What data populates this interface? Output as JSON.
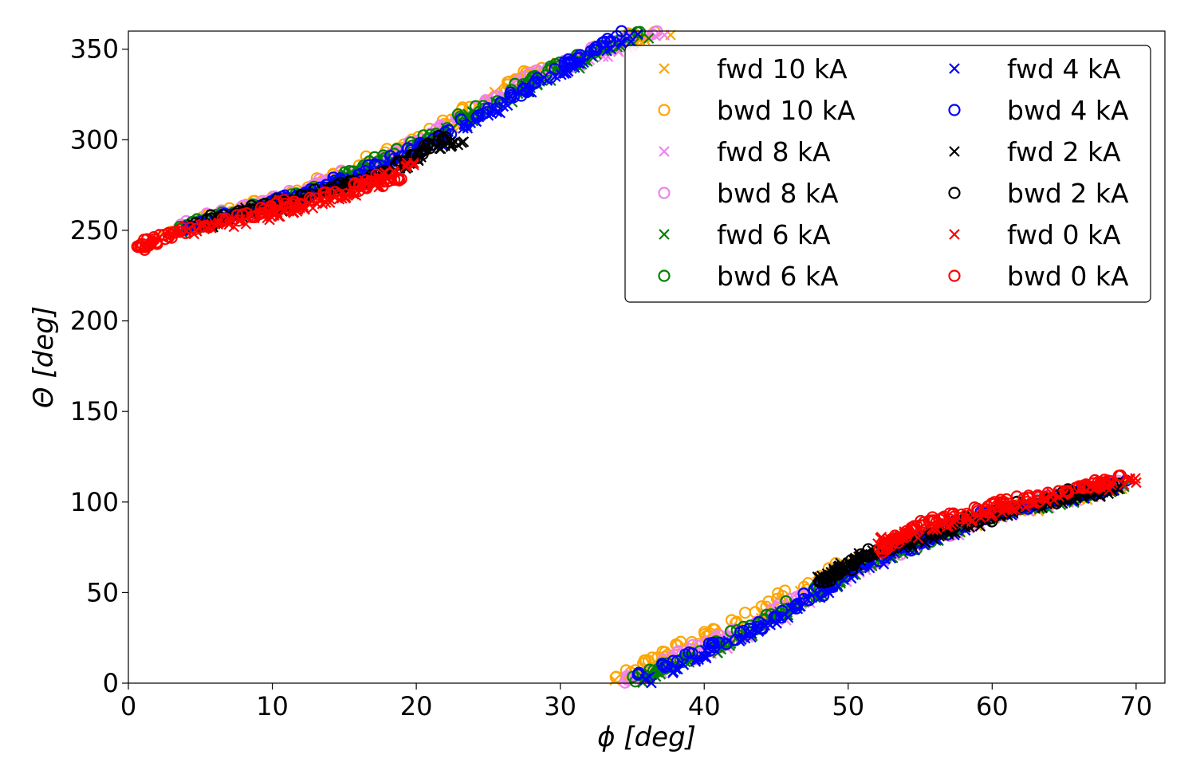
{
  "chart_data": {
    "type": "scatter",
    "title": "",
    "xlabel": "ϕ [deg]",
    "ylabel": "Θ [deg]",
    "xlim": [
      0,
      72
    ],
    "ylim": [
      0,
      360
    ],
    "xticks": [
      0,
      10,
      20,
      30,
      40,
      50,
      60,
      70
    ],
    "yticks": [
      0,
      50,
      100,
      150,
      200,
      250,
      300,
      350
    ],
    "grid": false,
    "legend_position": "top-right",
    "legend_columns": 2,
    "series": [
      {
        "name": "fwd 10 kA",
        "color": "#ffa500",
        "marker": "x",
        "segments": [
          [
            [
              2.5,
              248
            ],
            [
              12,
              268
            ],
            [
              20,
              296
            ],
            [
              28,
              334
            ],
            [
              38,
              362
            ]
          ],
          [
            [
              34,
              0
            ],
            [
              42,
              26
            ],
            [
              50,
              62
            ],
            [
              60,
              92
            ],
            [
              69,
              108
            ]
          ]
        ]
      },
      {
        "name": "bwd 10 kA",
        "color": "#ffa500",
        "marker": "o",
        "segments": [
          [
            [
              2.5,
              250
            ],
            [
              12,
              272
            ],
            [
              20,
              300
            ],
            [
              28,
              338
            ],
            [
              37,
              362
            ]
          ],
          [
            [
              33,
              1
            ],
            [
              41,
              30
            ],
            [
              50,
              66
            ],
            [
              60,
              94
            ],
            [
              69,
              110
            ]
          ]
        ]
      },
      {
        "name": "fwd 8 kA",
        "color": "#ee82ee",
        "marker": "x",
        "segments": [
          [
            [
              3,
              249
            ],
            [
              12,
              268
            ],
            [
              20,
              295
            ],
            [
              28,
              332
            ],
            [
              38,
              362
            ]
          ],
          [
            [
              35,
              0
            ],
            [
              43,
              26
            ],
            [
              51,
              64
            ],
            [
              60,
              92
            ],
            [
              69,
              108
            ]
          ]
        ]
      },
      {
        "name": "bwd 8 kA",
        "color": "#ee82ee",
        "marker": "o",
        "segments": [
          [
            [
              3,
              251
            ],
            [
              12,
              271
            ],
            [
              20,
              298
            ],
            [
              28,
              336
            ],
            [
              37,
              362
            ]
          ],
          [
            [
              34,
              1
            ],
            [
              42,
              28
            ],
            [
              51,
              66
            ],
            [
              60,
              94
            ],
            [
              69,
              110
            ]
          ]
        ]
      },
      {
        "name": "fwd 6 kA",
        "color": "#008000",
        "marker": "x",
        "segments": [
          [
            [
              3.5,
              250
            ],
            [
              12,
              268
            ],
            [
              20,
              294
            ],
            [
              28,
              330
            ],
            [
              37,
              362
            ]
          ],
          [
            [
              35,
              1
            ],
            [
              43,
              26
            ],
            [
              51,
              64
            ],
            [
              60,
              92
            ],
            [
              69,
              108
            ]
          ]
        ]
      },
      {
        "name": "bwd 6 kA",
        "color": "#008000",
        "marker": "o",
        "segments": [
          [
            [
              3.5,
              252
            ],
            [
              12,
              270
            ],
            [
              20,
              297
            ],
            [
              28,
              334
            ],
            [
              36,
              362
            ]
          ],
          [
            [
              35,
              2
            ],
            [
              43,
              30
            ],
            [
              51,
              66
            ],
            [
              60,
              94
            ],
            [
              69,
              110
            ]
          ]
        ]
      },
      {
        "name": "fwd 4 kA",
        "color": "#0000ff",
        "marker": "x",
        "segments": [
          [
            [
              4,
              250
            ],
            [
              12,
              268
            ],
            [
              20,
              292
            ],
            [
              28,
              328
            ],
            [
              36,
              362
            ]
          ],
          [
            [
              36,
              1
            ],
            [
              44,
              30
            ],
            [
              52,
              68
            ],
            [
              60,
              92
            ],
            [
              69,
              108
            ]
          ]
        ]
      },
      {
        "name": "bwd 4 kA",
        "color": "#0000ff",
        "marker": "o",
        "segments": [
          [
            [
              4,
              252
            ],
            [
              12,
              270
            ],
            [
              20,
              295
            ],
            [
              28,
              331
            ],
            [
              35,
              362
            ]
          ],
          [
            [
              35,
              3
            ],
            [
              44,
              32
            ],
            [
              52,
              70
            ],
            [
              60,
              94
            ],
            [
              69,
              110
            ]
          ]
        ]
      },
      {
        "name": "fwd 2 kA",
        "color": "#000000",
        "marker": "x",
        "segments": [
          [
            [
              4.5,
              252
            ],
            [
              12,
              266
            ],
            [
              18,
              280
            ],
            [
              23,
              300
            ]
          ],
          [
            [
              48,
              58
            ],
            [
              51,
              70
            ],
            [
              56,
              82
            ],
            [
              63,
              98
            ],
            [
              69,
              108
            ]
          ]
        ]
      },
      {
        "name": "bwd 2 kA",
        "color": "#000000",
        "marker": "o",
        "segments": [
          [
            [
              4.5,
              254
            ],
            [
              12,
              268
            ],
            [
              18,
              282
            ],
            [
              22,
              302
            ]
          ],
          [
            [
              48,
              56
            ],
            [
              51,
              70
            ],
            [
              56,
              84
            ],
            [
              63,
              100
            ],
            [
              69,
              110
            ]
          ]
        ]
      },
      {
        "name": "fwd 0 kA",
        "color": "#ff0000",
        "marker": "x",
        "segments": [
          [
            [
              3,
              249
            ],
            [
              10,
              258
            ],
            [
              15,
              268
            ],
            [
              20,
              288
            ]
          ],
          [
            [
              52,
              78
            ],
            [
              56,
              86
            ],
            [
              62,
              98
            ],
            [
              70,
              114
            ]
          ]
        ]
      },
      {
        "name": "bwd 0 kA",
        "color": "#ff0000",
        "marker": "o",
        "segments": [
          [
            [
              0.5,
              240
            ],
            [
              3,
              248
            ],
            [
              10,
              262
            ],
            [
              15,
              272
            ],
            [
              19,
              280
            ]
          ],
          [
            [
              52,
              72
            ],
            [
              55,
              88
            ],
            [
              60,
              98
            ],
            [
              66,
              108
            ],
            [
              69,
              112
            ]
          ]
        ]
      }
    ]
  }
}
